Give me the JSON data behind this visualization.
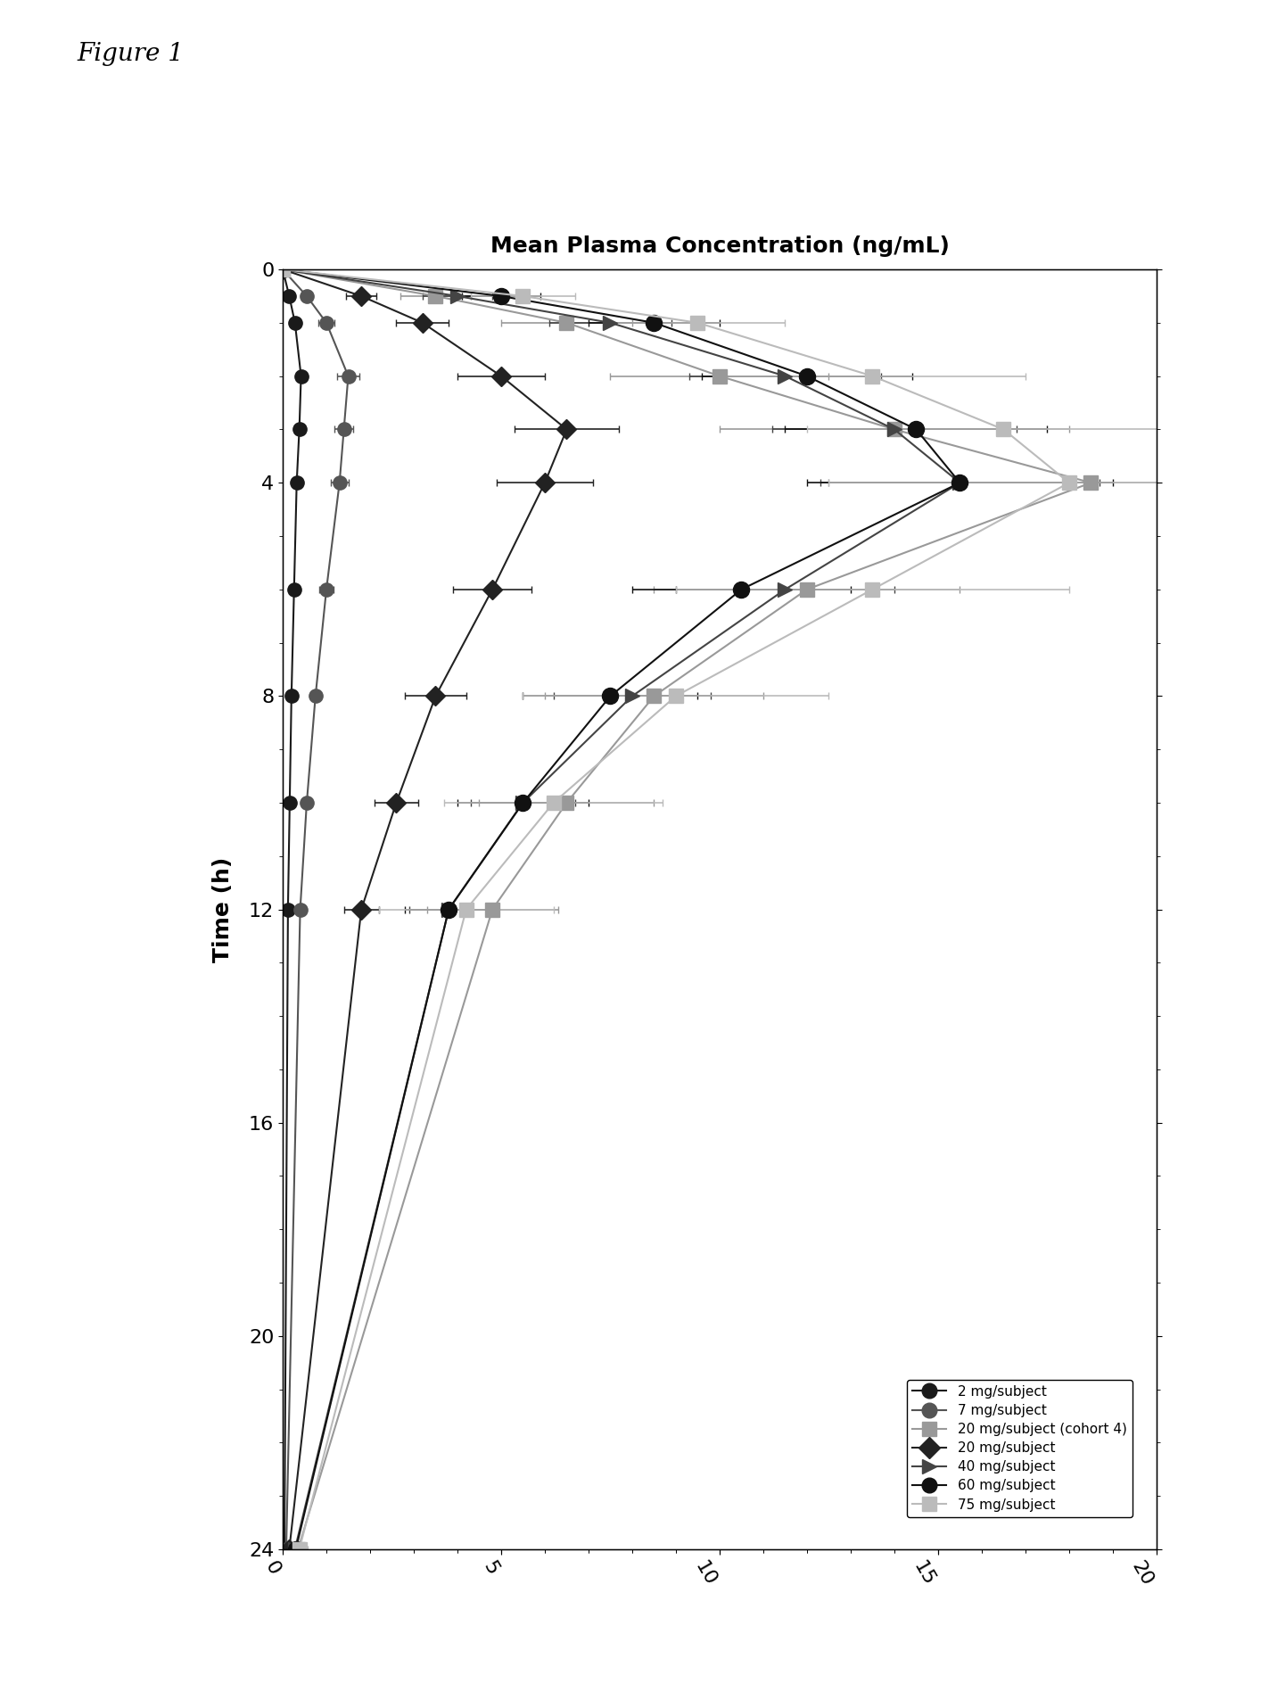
{
  "title": "Mean Plasma Concentration (ng/mL)",
  "ylabel": "Time (h)",
  "figure_label": "Figure 1",
  "xlim": [
    0,
    20
  ],
  "ylim": [
    0,
    24
  ],
  "yticks": [
    0,
    4,
    8,
    12,
    16,
    20,
    24
  ],
  "xticks": [
    0,
    5,
    10,
    15,
    20
  ],
  "series": [
    {
      "label": "2 mg/subject",
      "color": "#1a1a1a",
      "marker": "o",
      "markersize": 11,
      "linestyle": "-",
      "linewidth": 1.5,
      "time": [
        0,
        0.5,
        1,
        2,
        3,
        4,
        6,
        8,
        10,
        12,
        24
      ],
      "conc": [
        0.0,
        0.15,
        0.28,
        0.42,
        0.38,
        0.32,
        0.26,
        0.2,
        0.16,
        0.12,
        0.04
      ],
      "err": [
        0.0,
        0.04,
        0.05,
        0.06,
        0.06,
        0.05,
        0.04,
        0.04,
        0.03,
        0.03,
        0.01
      ]
    },
    {
      "label": "7 mg/subject",
      "color": "#555555",
      "marker": "o",
      "markersize": 11,
      "linestyle": "-",
      "linewidth": 1.5,
      "time": [
        0,
        0.5,
        1,
        2,
        3,
        4,
        6,
        8,
        10,
        12,
        24
      ],
      "conc": [
        0.0,
        0.55,
        1.0,
        1.5,
        1.4,
        1.3,
        1.0,
        0.75,
        0.55,
        0.4,
        0.08
      ],
      "err": [
        0.0,
        0.1,
        0.18,
        0.25,
        0.22,
        0.2,
        0.16,
        0.12,
        0.1,
        0.08,
        0.02
      ]
    },
    {
      "label": "20 mg/subject (cohort 4)",
      "color": "#999999",
      "marker": "s",
      "markersize": 11,
      "linestyle": "-",
      "linewidth": 1.5,
      "time": [
        0,
        0.5,
        1,
        2,
        3,
        4,
        6,
        8,
        10,
        12,
        24
      ],
      "conc": [
        0.0,
        3.5,
        6.5,
        10.0,
        14.0,
        18.5,
        12.0,
        8.5,
        6.5,
        4.8,
        0.35
      ],
      "err": [
        0.0,
        0.8,
        1.5,
        2.5,
        4.0,
        6.0,
        3.5,
        2.5,
        2.0,
        1.5,
        0.15
      ]
    },
    {
      "label": "20 mg/subject",
      "color": "#222222",
      "marker": "D",
      "markersize": 11,
      "linestyle": "-",
      "linewidth": 1.5,
      "time": [
        0,
        0.5,
        1,
        2,
        3,
        4,
        6,
        8,
        10,
        12,
        24
      ],
      "conc": [
        0.0,
        1.8,
        3.2,
        5.0,
        6.5,
        6.0,
        4.8,
        3.5,
        2.6,
        1.8,
        0.15
      ],
      "err": [
        0.0,
        0.35,
        0.6,
        1.0,
        1.2,
        1.1,
        0.9,
        0.7,
        0.5,
        0.4,
        0.05
      ]
    },
    {
      "label": "40 mg/subject",
      "color": "#444444",
      "marker": ">",
      "markersize": 11,
      "linestyle": "-",
      "linewidth": 1.5,
      "time": [
        0,
        0.5,
        1,
        2,
        3,
        4,
        6,
        8,
        10,
        12,
        24
      ],
      "conc": [
        0.0,
        4.0,
        7.5,
        11.5,
        14.0,
        15.5,
        11.5,
        8.0,
        5.5,
        3.8,
        0.28
      ],
      "err": [
        0.0,
        0.8,
        1.4,
        2.2,
        2.8,
        3.2,
        2.5,
        1.8,
        1.2,
        0.9,
        0.1
      ]
    },
    {
      "label": "60 mg/subject",
      "color": "#111111",
      "marker": "o",
      "markersize": 13,
      "linestyle": "-",
      "linewidth": 1.5,
      "time": [
        0,
        0.5,
        1,
        2,
        3,
        4,
        6,
        8,
        10,
        12,
        24
      ],
      "conc": [
        0.0,
        5.0,
        8.5,
        12.0,
        14.5,
        15.5,
        10.5,
        7.5,
        5.5,
        3.8,
        0.3
      ],
      "err": [
        0.0,
        0.9,
        1.5,
        2.4,
        3.0,
        3.5,
        2.5,
        2.0,
        1.5,
        1.0,
        0.1
      ]
    },
    {
      "label": "75 mg/subject",
      "color": "#bbbbbb",
      "marker": "s",
      "markersize": 11,
      "linestyle": "-",
      "linewidth": 1.5,
      "time": [
        0,
        0.5,
        1,
        2,
        3,
        4,
        6,
        8,
        10,
        12,
        24
      ],
      "conc": [
        0.0,
        5.5,
        9.5,
        13.5,
        16.5,
        18.0,
        13.5,
        9.0,
        6.2,
        4.2,
        0.38
      ],
      "err": [
        0.0,
        1.2,
        2.0,
        3.5,
        4.5,
        5.5,
        4.5,
        3.5,
        2.5,
        2.0,
        0.2
      ]
    }
  ],
  "background_color": "#ffffff"
}
